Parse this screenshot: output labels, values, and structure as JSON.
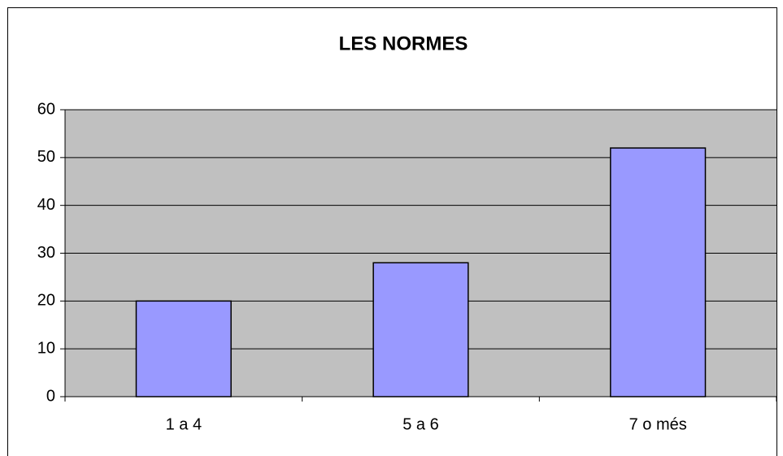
{
  "chart_data": {
    "type": "bar",
    "title": "LES NORMES",
    "categories": [
      "1 a 4",
      "5 a 6",
      "7 o més"
    ],
    "values": [
      20,
      28,
      52
    ],
    "color": "#9999ff",
    "ylim": [
      0,
      60
    ],
    "yticks": [
      0,
      10,
      20,
      30,
      40,
      50,
      60
    ],
    "grid": true
  }
}
